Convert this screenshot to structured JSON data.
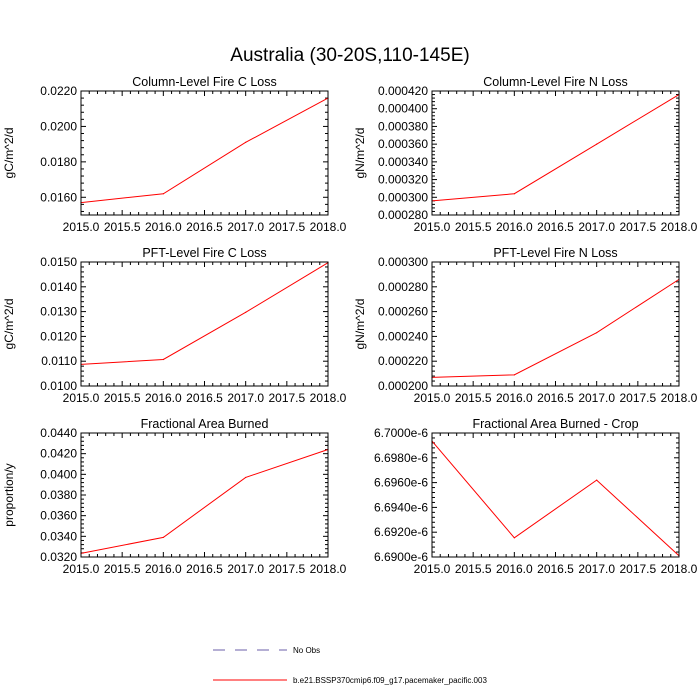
{
  "figure": {
    "title": "Australia (30-20S,110-145E)"
  },
  "colors": {
    "model_line": "#ff0000",
    "obs_line": "#6b5fa8",
    "axes": "#000000",
    "background": "#ffffff"
  },
  "legend": {
    "placement": "bottom-center",
    "entries": [
      {
        "label": "No Obs",
        "style": "dashed",
        "color": "#6b5fa8"
      },
      {
        "label": "b.e21.BSSP370cmip6.f09_g17.pacemaker_pacific.003",
        "style": "solid",
        "color": "#ff0000"
      }
    ]
  },
  "chart_data": [
    {
      "type": "line",
      "title": "Column-Level Fire C Loss",
      "ylabel": "gC/m^2/d",
      "xlabel": "",
      "xlim": [
        2015.0,
        2018.0
      ],
      "ylim": [
        0.015,
        0.022
      ],
      "xticks": [
        "2015.0",
        "2015.5",
        "2016.0",
        "2016.5",
        "2017.0",
        "2017.5",
        "2018.0"
      ],
      "yticks": [
        "0.0160",
        "0.0180",
        "0.0200",
        "0.0220"
      ],
      "grid": false,
      "series": [
        {
          "x": [
            2015,
            2016,
            2017,
            2018
          ],
          "values": [
            0.0157,
            0.0162,
            0.0191,
            0.0216
          ]
        }
      ]
    },
    {
      "type": "line",
      "title": "Column-Level Fire N Loss",
      "ylabel": "gN/m^2/d",
      "xlabel": "",
      "xlim": [
        2015.0,
        2018.0
      ],
      "ylim": [
        0.00028,
        0.00042
      ],
      "xticks": [
        "2015.0",
        "2015.5",
        "2016.0",
        "2016.5",
        "2017.0",
        "2017.5",
        "2018.0"
      ],
      "yticks": [
        "0.000280",
        "0.000300",
        "0.000320",
        "0.000340",
        "0.000360",
        "0.000380",
        "0.000400",
        "0.000420"
      ],
      "grid": false,
      "series": [
        {
          "x": [
            2015,
            2016,
            2017,
            2018
          ],
          "values": [
            0.000296,
            0.000304,
            0.00036,
            0.000416
          ]
        }
      ]
    },
    {
      "type": "line",
      "title": "PFT-Level Fire C Loss",
      "ylabel": "gC/m^2/d",
      "xlabel": "",
      "xlim": [
        2015.0,
        2018.0
      ],
      "ylim": [
        0.01,
        0.015
      ],
      "xticks": [
        "2015.0",
        "2015.5",
        "2016.0",
        "2016.5",
        "2017.0",
        "2017.5",
        "2018.0"
      ],
      "yticks": [
        "0.0100",
        "0.0110",
        "0.0120",
        "0.0130",
        "0.0140",
        "0.0150"
      ],
      "grid": false,
      "series": [
        {
          "x": [
            2015,
            2016,
            2017,
            2018
          ],
          "values": [
            0.01087,
            0.01107,
            0.01297,
            0.01497
          ]
        }
      ]
    },
    {
      "type": "line",
      "title": "PFT-Level Fire N Loss",
      "ylabel": "gN/m^2/d",
      "xlabel": "",
      "xlim": [
        2015.0,
        2018.0
      ],
      "ylim": [
        0.0002,
        0.0003
      ],
      "xticks": [
        "2015.0",
        "2015.5",
        "2016.0",
        "2016.5",
        "2017.0",
        "2017.5",
        "2018.0"
      ],
      "yticks": [
        "0.000200",
        "0.000220",
        "0.000240",
        "0.000260",
        "0.000280",
        "0.000300"
      ],
      "grid": false,
      "series": [
        {
          "x": [
            2015,
            2016,
            2017,
            2018
          ],
          "values": [
            0.000207,
            0.000209,
            0.000243,
            0.000286
          ]
        }
      ]
    },
    {
      "type": "line",
      "title": "Fractional Area Burned",
      "ylabel": "proportion/y",
      "xlabel": "",
      "xlim": [
        2015.0,
        2018.0
      ],
      "ylim": [
        0.032,
        0.044
      ],
      "xticks": [
        "2015.0",
        "2015.5",
        "2016.0",
        "2016.5",
        "2017.0",
        "2017.5",
        "2018.0"
      ],
      "yticks": [
        "0.0320",
        "0.0340",
        "0.0360",
        "0.0380",
        "0.0400",
        "0.0420",
        "0.0440"
      ],
      "grid": false,
      "series": [
        {
          "x": [
            2015,
            2016,
            2017,
            2018
          ],
          "values": [
            0.03235,
            0.0339,
            0.0397,
            0.0424
          ]
        }
      ]
    },
    {
      "type": "line",
      "title": "Fractional Area Burned - Crop",
      "ylabel": "",
      "xlabel": "",
      "xlim": [
        2015.0,
        2018.0
      ],
      "ylim": [
        6.69e-06,
        6.7e-06
      ],
      "xticks": [
        "2015.0",
        "2015.5",
        "2016.0",
        "2016.5",
        "2017.0",
        "2017.5",
        "2018.0"
      ],
      "yticks": [
        "6.6900e-6",
        "6.6920e-6",
        "6.6940e-6",
        "6.6960e-6",
        "6.6980e-6",
        "6.7000e-6"
      ],
      "grid": false,
      "series": [
        {
          "x": [
            2015,
            2016,
            2017,
            2018
          ],
          "values": [
            6.69935e-06,
            6.69155e-06,
            6.6962e-06,
            6.6901e-06
          ]
        }
      ]
    }
  ]
}
